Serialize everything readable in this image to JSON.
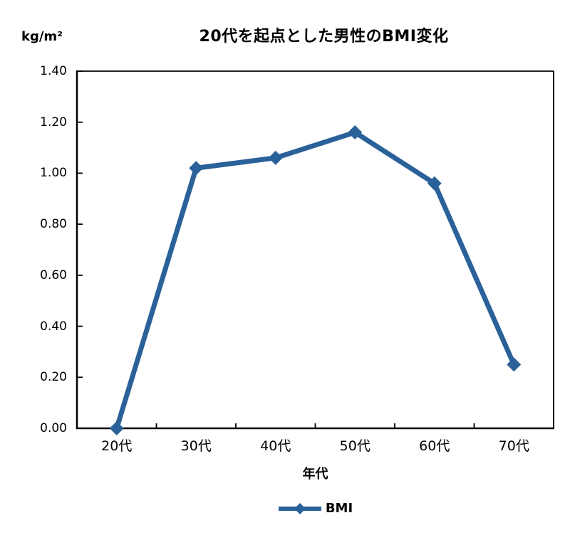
{
  "chart_data": {
    "type": "line",
    "title": "20代を起点とした男性のBMI変化",
    "unit_label": "kg/m²",
    "xlabel": "年代",
    "categories": [
      "20代",
      "30代",
      "40代",
      "50代",
      "60代",
      "70代"
    ],
    "series": [
      {
        "name": "BMI",
        "values": [
          0.0,
          1.02,
          1.06,
          1.16,
          0.96,
          0.25
        ],
        "color": "#2B6199",
        "marker": "diamond"
      }
    ],
    "ylim": [
      0.0,
      1.4
    ],
    "ytick_step": 0.2,
    "ytick_labels": [
      "0.00",
      "0.20",
      "0.40",
      "0.60",
      "0.80",
      "1.00",
      "1.20",
      "1.40"
    ],
    "grid": false,
    "legend_position": "bottom-center",
    "legend": [
      {
        "label": "BMI",
        "color": "#2B6199"
      }
    ]
  },
  "colors": {
    "background": "#FFFFFF",
    "axis": "#000000",
    "text": "#000000",
    "line": "#2B6199"
  }
}
